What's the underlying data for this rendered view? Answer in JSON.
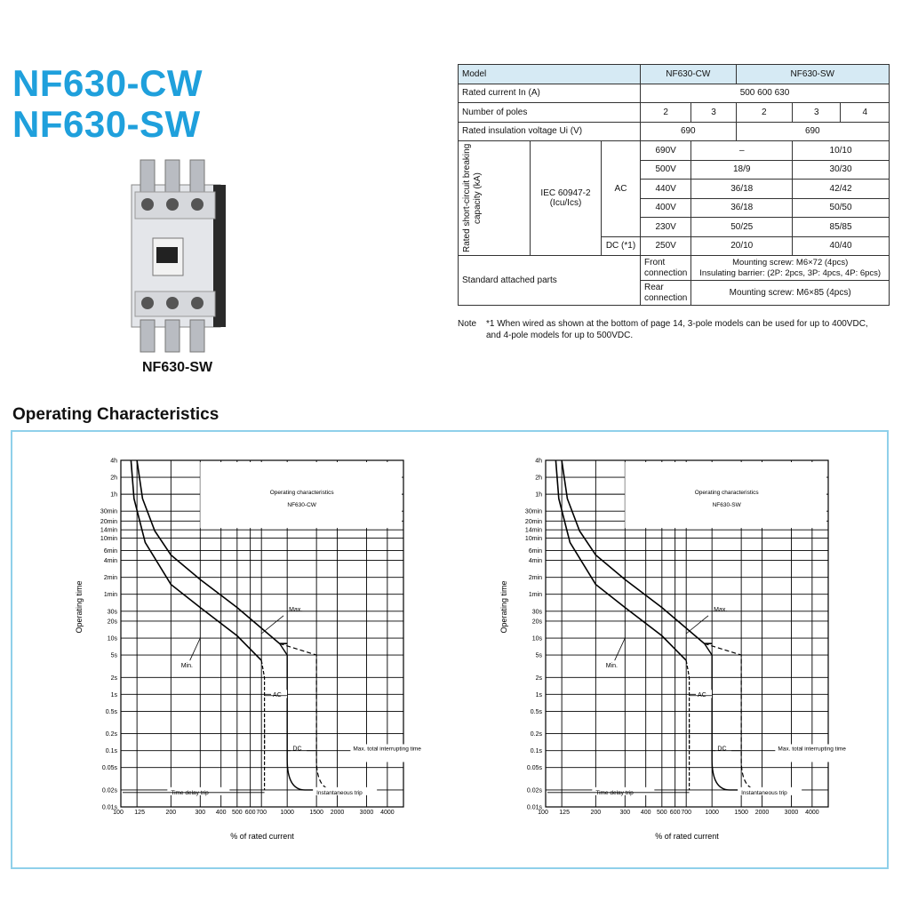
{
  "header": {
    "title_line1": "NF630-CW",
    "title_line2": "NF630-SW"
  },
  "product": {
    "caption": "NF630-SW",
    "icon": "circuit-breaker-icon"
  },
  "spec_table": {
    "header": {
      "model": "Model",
      "cw": "NF630-CW",
      "sw": "NF630-SW"
    },
    "rated_current": {
      "label": "Rated current In (A)",
      "value": "500   600   630"
    },
    "poles": {
      "label": "Number of poles",
      "cw": [
        "2",
        "3"
      ],
      "sw": [
        "2",
        "3",
        "4"
      ]
    },
    "insulation": {
      "label": "Rated insulation voltage Ui (V)",
      "cw": "690",
      "sw": "690"
    },
    "breaking": {
      "group_label": "Rated short-circuit breaking capacity (kA)",
      "standard": "IEC 60947-2 (Icu/Ics)",
      "ac_label": "AC",
      "dc_label": "DC (*1)",
      "rows": [
        {
          "voltage": "690V",
          "cw": "–",
          "sw": "10/10"
        },
        {
          "voltage": "500V",
          "cw": "18/9",
          "sw": "30/30"
        },
        {
          "voltage": "440V",
          "cw": "36/18",
          "sw": "42/42"
        },
        {
          "voltage": "400V",
          "cw": "36/18",
          "sw": "50/50"
        },
        {
          "voltage": "230V",
          "cw": "50/25",
          "sw": "85/85"
        },
        {
          "voltage": "250V",
          "cw": "20/10",
          "sw": "40/40"
        }
      ]
    },
    "attached": {
      "label": "Standard attached parts",
      "front_label": "Front connection",
      "front_value_1": "Mounting screw: M6×72 (4pcs)",
      "front_value_2": "Insulating barrier: (2P: 2pcs, 3P: 4pcs, 4P: 6pcs)",
      "rear_label": "Rear connection",
      "rear_value": "Mounting screw: M6×85 (4pcs)"
    }
  },
  "note": {
    "label": "Note",
    "text": "*1  When wired as shown at the bottom of page 14, 3-pole models can be used for up to 400VDC, and 4-pole models for up to 500VDC."
  },
  "section": {
    "title": "Operating Characteristics"
  },
  "chart_data": [
    {
      "type": "line",
      "title": "Operating characteristics",
      "subtitle": "NF630-CW",
      "xlabel": "% of rated current",
      "ylabel": "Operating time",
      "x_scale": "log",
      "y_scale": "log",
      "xlim": [
        100,
        5000
      ],
      "ylim_seconds": [
        0.01,
        14400
      ],
      "x_ticks": [
        "100",
        "125",
        "200",
        "300",
        "400",
        "500",
        "600",
        "700",
        "1000",
        "1500",
        "2000",
        "3000",
        "4000"
      ],
      "y_ticks": [
        "4h",
        "2h",
        "1h",
        "30min",
        "20min",
        "14min",
        "10min",
        "6min",
        "4min",
        "2min",
        "1min",
        "30s",
        "20s",
        "10s",
        "5s",
        "2s",
        "1s",
        "0.5s",
        "0.2s",
        "0.1s",
        "0.05s",
        "0.02s",
        "0.01s"
      ],
      "series": [
        {
          "name": "Max.",
          "points": [
            [
              125,
              14400
            ],
            [
              135,
              3000
            ],
            [
              160,
              800
            ],
            [
              200,
              300
            ],
            [
              300,
              110
            ],
            [
              500,
              35
            ],
            [
              700,
              15
            ],
            [
              900,
              8
            ],
            [
              1000,
              8
            ],
            [
              1020,
              0.02
            ],
            [
              2000,
              0.02
            ]
          ]
        },
        {
          "name": "Min.",
          "points": [
            [
              115,
              14400
            ],
            [
              120,
              3000
            ],
            [
              140,
              500
            ],
            [
              200,
              90
            ],
            [
              300,
              35
            ],
            [
              500,
              11
            ],
            [
              700,
              4
            ],
            [
              730,
              0.02
            ],
            [
              2000,
              0.02
            ]
          ]
        }
      ],
      "annotations": [
        "Max.",
        "Min.",
        "AC",
        "DC",
        "Time delay trip",
        "Instantaneous trip",
        "Max. total interrupting time"
      ]
    },
    {
      "type": "line",
      "title": "Operating characteristics",
      "subtitle": "NF630-SW",
      "xlabel": "% of rated current",
      "ylabel": "Operating time",
      "x_scale": "log",
      "y_scale": "log",
      "xlim": [
        100,
        5000
      ],
      "ylim_seconds": [
        0.01,
        14400
      ],
      "x_ticks": [
        "100",
        "125",
        "200",
        "300",
        "400",
        "500",
        "600",
        "700",
        "1000",
        "1500",
        "2000",
        "3000",
        "4000"
      ],
      "y_ticks": [
        "4h",
        "2h",
        "1h",
        "30min",
        "20min",
        "14min",
        "10min",
        "6min",
        "4min",
        "2min",
        "1min",
        "30s",
        "20s",
        "10s",
        "5s",
        "2s",
        "1s",
        "0.5s",
        "0.2s",
        "0.1s",
        "0.05s",
        "0.02s",
        "0.01s"
      ],
      "series": [
        {
          "name": "Max.",
          "points": [
            [
              125,
              14400
            ],
            [
              135,
              3000
            ],
            [
              160,
              800
            ],
            [
              200,
              300
            ],
            [
              300,
              110
            ],
            [
              500,
              35
            ],
            [
              700,
              15
            ],
            [
              900,
              8
            ],
            [
              1000,
              8
            ],
            [
              1020,
              0.02
            ],
            [
              2000,
              0.02
            ]
          ]
        },
        {
          "name": "Min.",
          "points": [
            [
              115,
              14400
            ],
            [
              120,
              3000
            ],
            [
              140,
              500
            ],
            [
              200,
              90
            ],
            [
              300,
              35
            ],
            [
              500,
              11
            ],
            [
              700,
              4
            ],
            [
              730,
              0.02
            ],
            [
              2000,
              0.02
            ]
          ]
        }
      ],
      "annotations": [
        "Max.",
        "Min.",
        "AC",
        "DC",
        "Time delay trip",
        "Instantaneous trip",
        "Max. total interrupting time"
      ]
    }
  ]
}
